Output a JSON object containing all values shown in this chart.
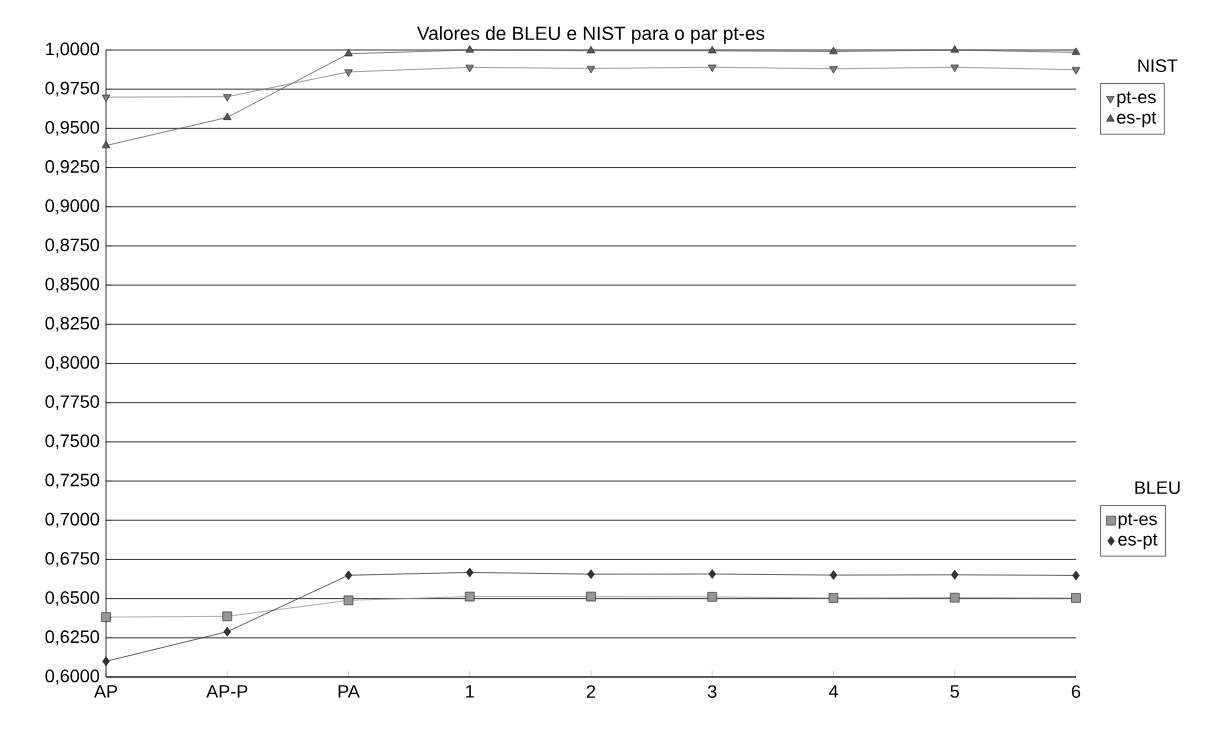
{
  "chart_data": {
    "type": "line",
    "title": "Valores de BLEU e NIST para o par pt-es",
    "categories": [
      "AP",
      "AP-P",
      "PA",
      "1",
      "2",
      "3",
      "4",
      "5",
      "6"
    ],
    "series": [
      {
        "name": "pt-es",
        "color": "#7f7f7f",
        "marker": "triangle down",
        "values": [
          0.9699,
          0.9702,
          0.986,
          0.9889,
          0.9882,
          0.989,
          0.988,
          0.989,
          0.9874
        ]
      },
      {
        "name": "es-pt",
        "color": "#595959",
        "marker": "triangle",
        "values": [
          0.939,
          0.957,
          0.9976,
          1.0,
          0.9995,
          0.9995,
          0.999,
          1.0,
          0.9985
        ]
      },
      {
        "name": "pt-es",
        "color": "#969696",
        "marker": "square",
        "values": [
          0.6382,
          0.6387,
          0.6489,
          0.6513,
          0.6513,
          0.6511,
          0.6504,
          0.6506,
          0.6504
        ]
      },
      {
        "name": "es-pt",
        "color": "#333333",
        "marker": "diamond",
        "values": [
          0.61,
          0.6289,
          0.6649,
          0.6667,
          0.6656,
          0.6657,
          0.665,
          0.6652,
          0.6648
        ]
      }
    ],
    "annotations": [
      "NIST",
      "BLEU"
    ],
    "ylim": [
      0.6,
      1.0
    ],
    "yticks": [
      {
        "value": 0.6,
        "label": "0,6000"
      },
      {
        "value": 0.625,
        "label": "0,6250"
      },
      {
        "value": 0.65,
        "label": "0,6500"
      },
      {
        "value": 0.675,
        "label": "0,6750"
      },
      {
        "value": 0.7,
        "label": "0,7000"
      },
      {
        "value": 0.725,
        "label": "0,7250"
      },
      {
        "value": 0.75,
        "label": "0,7500"
      },
      {
        "value": 0.775,
        "label": "0,7750"
      },
      {
        "value": 0.8,
        "label": "0,8000"
      },
      {
        "value": 0.825,
        "label": "0,8250"
      },
      {
        "value": 0.85,
        "label": "0,8500"
      },
      {
        "value": 0.875,
        "label": "0,8750"
      },
      {
        "value": 0.9,
        "label": "0,9000"
      },
      {
        "value": 0.925,
        "label": "0,9250"
      },
      {
        "value": 0.95,
        "label": "0,9500"
      },
      {
        "value": 0.975,
        "label": "0,9750"
      },
      {
        "value": 1.0,
        "label": "1,0000"
      }
    ],
    "grid": "y",
    "legend": "right"
  }
}
